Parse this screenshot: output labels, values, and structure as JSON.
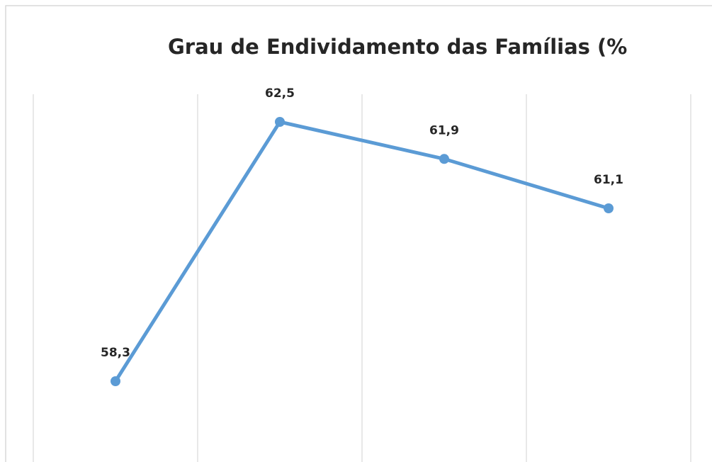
{
  "chart_data": {
    "type": "line",
    "title": "Grau de Endividamento das Famílias (%",
    "categories": [
      null,
      null,
      null,
      null
    ],
    "values": [
      58.3,
      62.5,
      61.9,
      61.1
    ],
    "value_labels": [
      "58,3",
      "62,5",
      "61,9",
      "61,1"
    ],
    "color": "#5b9bd5",
    "grid": true
  }
}
